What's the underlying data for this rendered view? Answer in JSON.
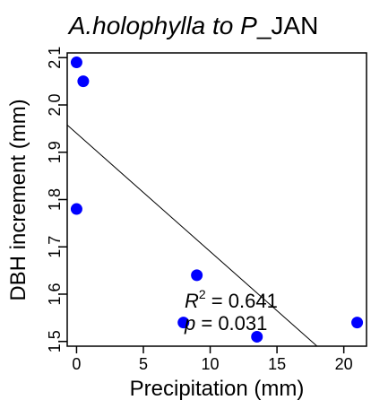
{
  "chart_data": {
    "type": "scatter",
    "title_species": "A.holophylla to P",
    "title_suffix": "_JAN",
    "xlabel": "Precipitation (mm)",
    "ylabel": "DBH increment (mm)",
    "xlim": [
      -0.7,
      21.7
    ],
    "ylim": [
      1.49,
      2.11
    ],
    "xticks": [
      0,
      5,
      10,
      15,
      20
    ],
    "yticks": [
      1.5,
      1.6,
      1.7,
      1.8,
      1.9,
      2.0,
      2.1
    ],
    "xtick_labels": [
      "0",
      "5",
      "10",
      "15",
      "20"
    ],
    "ytick_labels": [
      "1.5",
      "1.6",
      "1.7",
      "1.8",
      "1.9",
      "2.0",
      "2.1"
    ],
    "point_color": "#0000ff",
    "points": [
      {
        "x": 0.0,
        "y": 2.09
      },
      {
        "x": 0.5,
        "y": 2.05
      },
      {
        "x": 0.0,
        "y": 1.78
      },
      {
        "x": 9.0,
        "y": 1.64
      },
      {
        "x": 8.0,
        "y": 1.54
      },
      {
        "x": 13.5,
        "y": 1.51
      },
      {
        "x": 21.0,
        "y": 1.54
      }
    ],
    "regression": {
      "intercept": 1.94,
      "slope": -0.025
    },
    "annotations": {
      "r2_symbol": "R",
      "r2_exp": "2",
      "r2_text": " = 0.641",
      "p_symbol": "p",
      "p_text": " = 0.031"
    },
    "grid": false,
    "legend": "none"
  }
}
